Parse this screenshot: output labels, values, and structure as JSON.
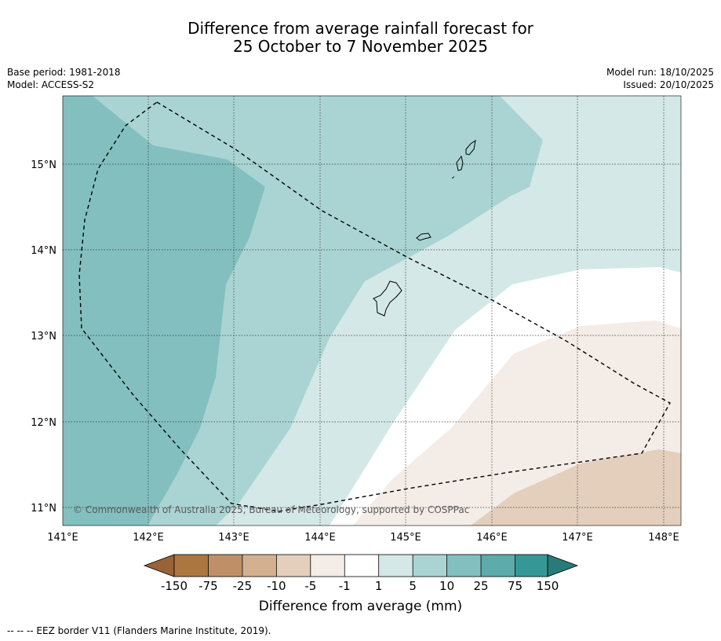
{
  "header": {
    "title_line1": "Difference from average rainfall forecast for",
    "title_line2": "25 October to 7 November 2025",
    "base_period": "Base period: 1981-2018",
    "model": "Model: ACCESS-S2",
    "model_run": "Model run: 18/10/2025",
    "issued": "Issued: 20/10/2025"
  },
  "map": {
    "lat_labels": [
      "15°N",
      "14°N",
      "13°N",
      "12°N",
      "11°N"
    ],
    "lon_labels": [
      "141°E",
      "142°E",
      "143°E",
      "144°E",
      "145°E",
      "146°E",
      "147°E",
      "148°E"
    ],
    "copyright": "© Commonwealth of Australia 2025, Bureau of Meteorology, supported by COSPPac"
  },
  "colorbar": {
    "tick_labels": [
      "-150",
      "-75",
      "-25",
      "-10",
      "-5",
      "-1",
      "1",
      "5",
      "10",
      "25",
      "75",
      "150"
    ],
    "colors": [
      "#ac7640",
      "#bf9068",
      "#d3b08f",
      "#e4cfbd",
      "#f4ece7",
      "#ffffff",
      "#d4e8e7",
      "#aad4d3",
      "#83bfbf",
      "#5dabab",
      "#369896"
    ],
    "under_color": "#9a6337",
    "over_color": "#2a7a79",
    "label": "Difference from average (mm)"
  },
  "legend": {
    "eez": "--  --  -- EEZ border V11 (Flanders Marine Institute, 2019)."
  }
}
